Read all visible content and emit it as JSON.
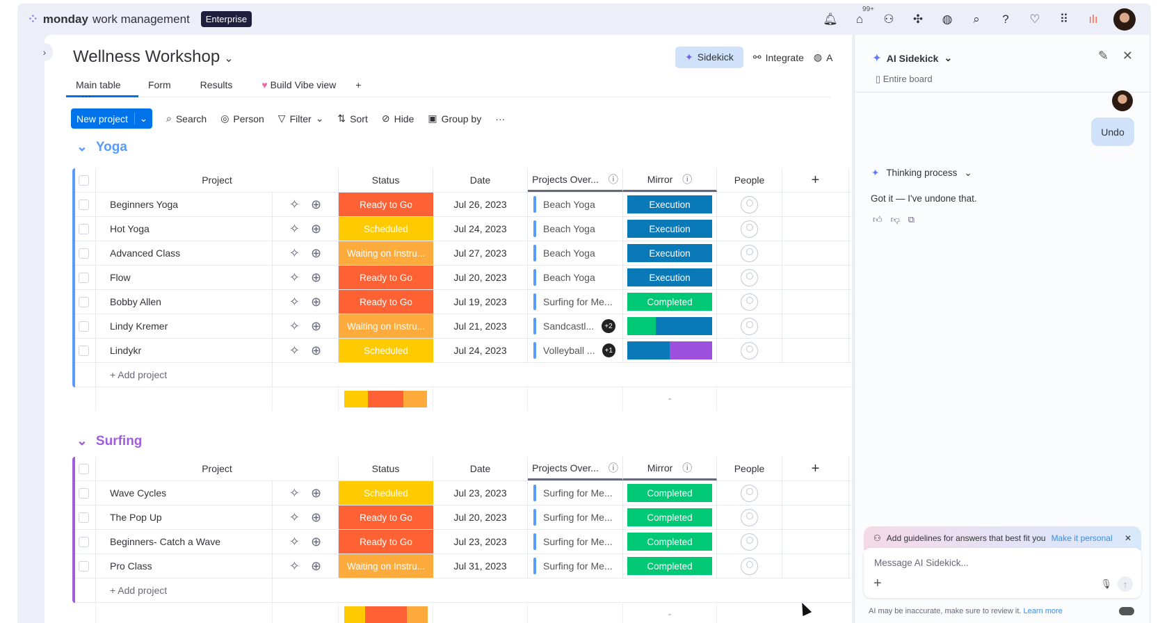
{
  "topbar": {
    "brand_bold": "monday",
    "brand_rest": "work management",
    "plan": "Enterprise",
    "inbox_badge": "99+",
    "icons": [
      "bell-icon",
      "inbox-icon",
      "invite-icon",
      "apps-icon",
      "robot-icon",
      "search-icon",
      "help-icon",
      "heart-icon",
      "grid-icon"
    ]
  },
  "board": {
    "title": "Wellness Workshop",
    "sidekick": "Sidekick",
    "integrate": "Integrate",
    "automate_cut": "A",
    "tabs": [
      {
        "label": "Main table"
      },
      {
        "label": "Form"
      },
      {
        "label": "Results"
      },
      {
        "label": "Build Vibe view"
      }
    ],
    "toolbar": {
      "new": "New project",
      "search": "Search",
      "person": "Person",
      "filter": "Filter",
      "sort": "Sort",
      "hide": "Hide",
      "group_by": "Group by"
    },
    "columns": {
      "project": "Project",
      "status": "Status",
      "date": "Date",
      "projects_over": "Projects Over...",
      "mirror": "Mirror",
      "people": "People"
    },
    "add_project": "+ Add project",
    "summary_dash": "-"
  },
  "status_colors": {
    "Ready to Go": "#fd6134",
    "Scheduled": "#ffcb00",
    "Waiting on Instru...": "#fdab3d"
  },
  "mirror_colors": {
    "Execution": "#0a79b7",
    "Completed": "#00c875",
    "purple": "#9d50dd"
  },
  "groups": [
    {
      "name": "Yoga",
      "color": "#579bfc",
      "rows": [
        {
          "project": "Beginners Yoga",
          "status": "Ready to Go",
          "date": "Jul 26, 2023",
          "projects_over": "Beach Yoga",
          "extra": "",
          "mirror": "Execution",
          "segments": []
        },
        {
          "project": "Hot Yoga",
          "status": "Scheduled",
          "date": "Jul 24, 2023",
          "projects_over": "Beach Yoga",
          "extra": "",
          "mirror": "Execution",
          "segments": []
        },
        {
          "project": "Advanced Class",
          "status": "Waiting on Instru...",
          "date": "Jul 27, 2023",
          "projects_over": "Beach Yoga",
          "extra": "",
          "mirror": "Execution",
          "segments": []
        },
        {
          "project": "Flow",
          "status": "Ready to Go",
          "date": "Jul 20, 2023",
          "projects_over": "Beach Yoga",
          "extra": "",
          "mirror": "Execution",
          "segments": []
        },
        {
          "project": "Bobby Allen",
          "status": "Ready to Go",
          "date": "Jul 19, 2023",
          "projects_over": "Surfing for Me...",
          "extra": "",
          "mirror": "Completed",
          "segments": []
        },
        {
          "project": "Lindy Kremer",
          "status": "Waiting on Instru...",
          "date": "Jul 21, 2023",
          "projects_over": "Sandcastl...",
          "extra": "+2",
          "mirror": "",
          "segments": [
            {
              "color": "#00c875",
              "fraction": 0.34
            },
            {
              "color": "#0a79b7",
              "fraction": 0.66
            }
          ]
        },
        {
          "project": "Lindykr",
          "status": "Scheduled",
          "date": "Jul 24, 2023",
          "projects_over": "Volleyball ...",
          "extra": "+1",
          "mirror": "",
          "segments": [
            {
              "color": "#0a79b7",
              "fraction": 0.5
            },
            {
              "color": "#9d50dd",
              "fraction": 0.5
            }
          ]
        }
      ],
      "summary": [
        {
          "color": "#ffcb00",
          "fraction": 0.2857
        },
        {
          "color": "#fd6134",
          "fraction": 0.4286
        },
        {
          "color": "#fdab3d",
          "fraction": 0.2857
        }
      ]
    },
    {
      "name": "Surfing",
      "color": "#a25ddc",
      "rows": [
        {
          "project": "Wave Cycles",
          "status": "Scheduled",
          "date": "Jul 23, 2023",
          "projects_over": "Surfing for Me...",
          "extra": "",
          "mirror": "Completed",
          "segments": []
        },
        {
          "project": "The Pop Up",
          "status": "Ready to Go",
          "date": "Jul 20, 2023",
          "projects_over": "Surfing for Me...",
          "extra": "",
          "mirror": "Completed",
          "segments": []
        },
        {
          "project": "Beginners- Catch a Wave",
          "status": "Ready to Go",
          "date": "Jul 23, 2023",
          "projects_over": "Surfing for Me...",
          "extra": "",
          "mirror": "Completed",
          "segments": []
        },
        {
          "project": "Pro Class",
          "status": "Waiting on Instru...",
          "date": "Jul 31, 2023",
          "projects_over": "Surfing for Me...",
          "extra": "",
          "mirror": "Completed",
          "segments": []
        }
      ],
      "summary": [
        {
          "color": "#ffcb00",
          "fraction": 0.25
        },
        {
          "color": "#fd6134",
          "fraction": 0.5
        },
        {
          "color": "#fdab3d",
          "fraction": 0.25
        }
      ]
    }
  ],
  "sidekick": {
    "title": "AI Sidekick",
    "scope": "Entire board",
    "user_msg": "Undo",
    "thinking": "Thinking process",
    "reply": "Got it — I've undone that.",
    "guidelines": "Add guidelines for answers that best fit you",
    "make_personal": "Make it personal",
    "placeholder": "Message AI Sidekick...",
    "disclaimer": "AI may be inaccurate, make sure to review it.",
    "learn_more": "Learn more"
  }
}
